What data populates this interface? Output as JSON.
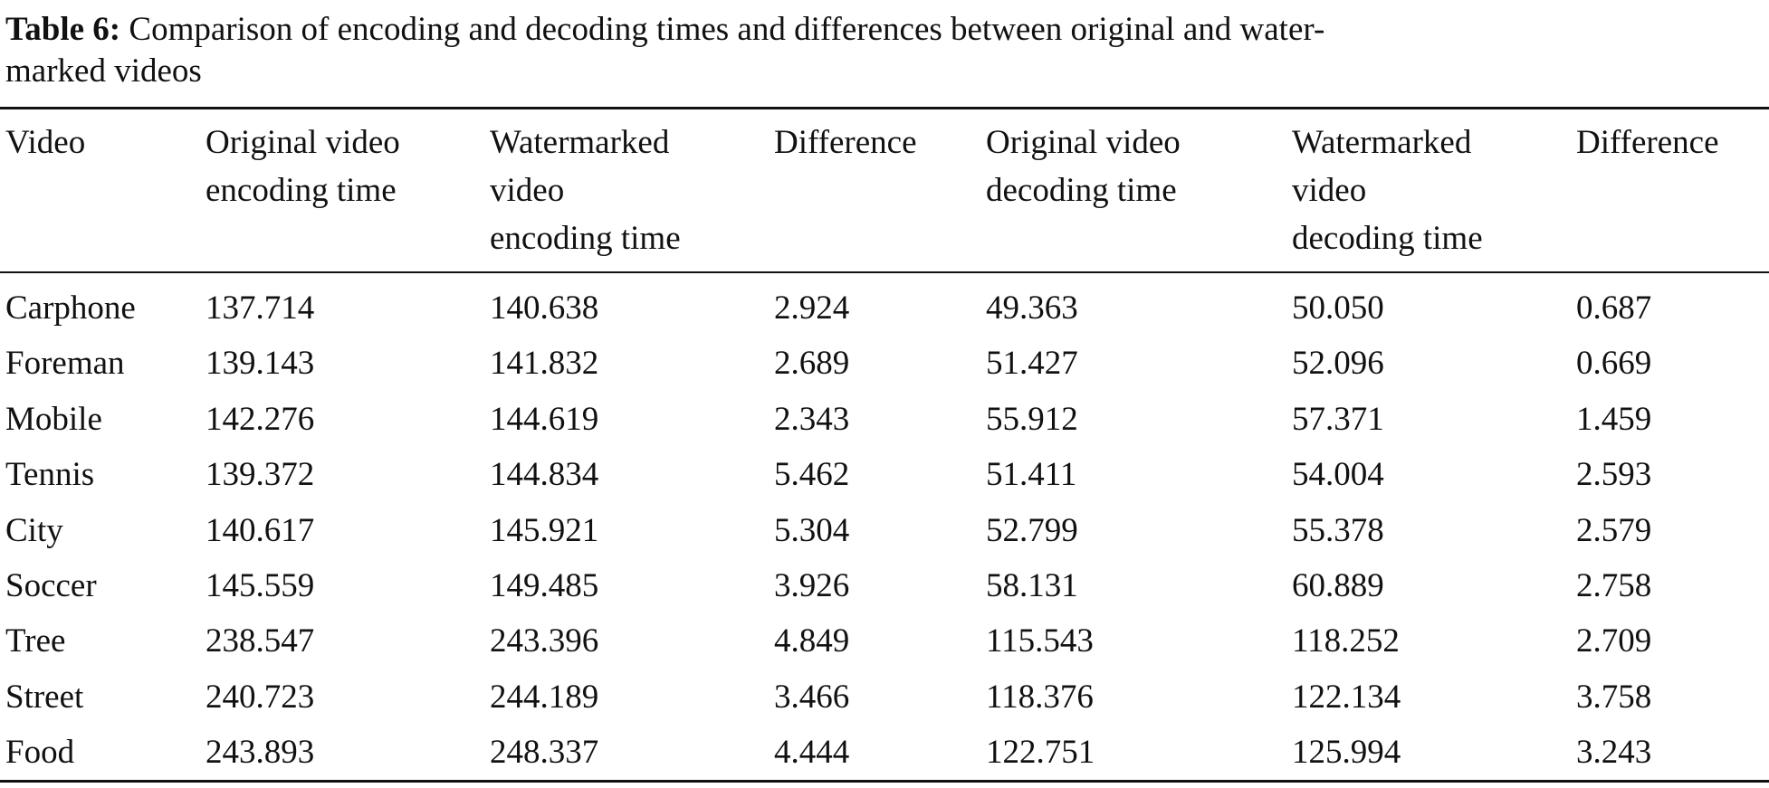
{
  "caption": {
    "label": "Table 6:",
    "lines": [
      "Comparison of encoding and decoding times and differences between original and water-",
      "marked videos"
    ]
  },
  "table": {
    "header": [
      [
        "Video"
      ],
      [
        "Original video",
        "encoding time"
      ],
      [
        "Watermarked",
        "video",
        "encoding time"
      ],
      [
        "Difference"
      ],
      [
        "Original video",
        "decoding time"
      ],
      [
        "Watermarked",
        "video",
        "decoding time"
      ],
      [
        "Difference"
      ]
    ],
    "rows": [
      [
        "Carphone",
        "137.714",
        "140.638",
        "2.924",
        "49.363",
        "50.050",
        "0.687"
      ],
      [
        "Foreman",
        "139.143",
        "141.832",
        "2.689",
        "51.427",
        "52.096",
        "0.669"
      ],
      [
        "Mobile",
        "142.276",
        "144.619",
        "2.343",
        "55.912",
        "57.371",
        "1.459"
      ],
      [
        "Tennis",
        "139.372",
        "144.834",
        "5.462",
        "51.411",
        "54.004",
        "2.593"
      ],
      [
        "City",
        "140.617",
        "145.921",
        "5.304",
        "52.799",
        "55.378",
        "2.579"
      ],
      [
        "Soccer",
        "145.559",
        "149.485",
        "3.926",
        "58.131",
        "60.889",
        "2.758"
      ],
      [
        "Tree",
        "238.547",
        "243.396",
        "4.849",
        "115.543",
        "118.252",
        "2.709"
      ],
      [
        "Street",
        "240.723",
        "244.189",
        "3.466",
        "118.376",
        "122.134",
        "3.758"
      ],
      [
        "Food",
        "243.893",
        "248.337",
        "4.444",
        "122.751",
        "125.994",
        "3.243"
      ]
    ]
  }
}
